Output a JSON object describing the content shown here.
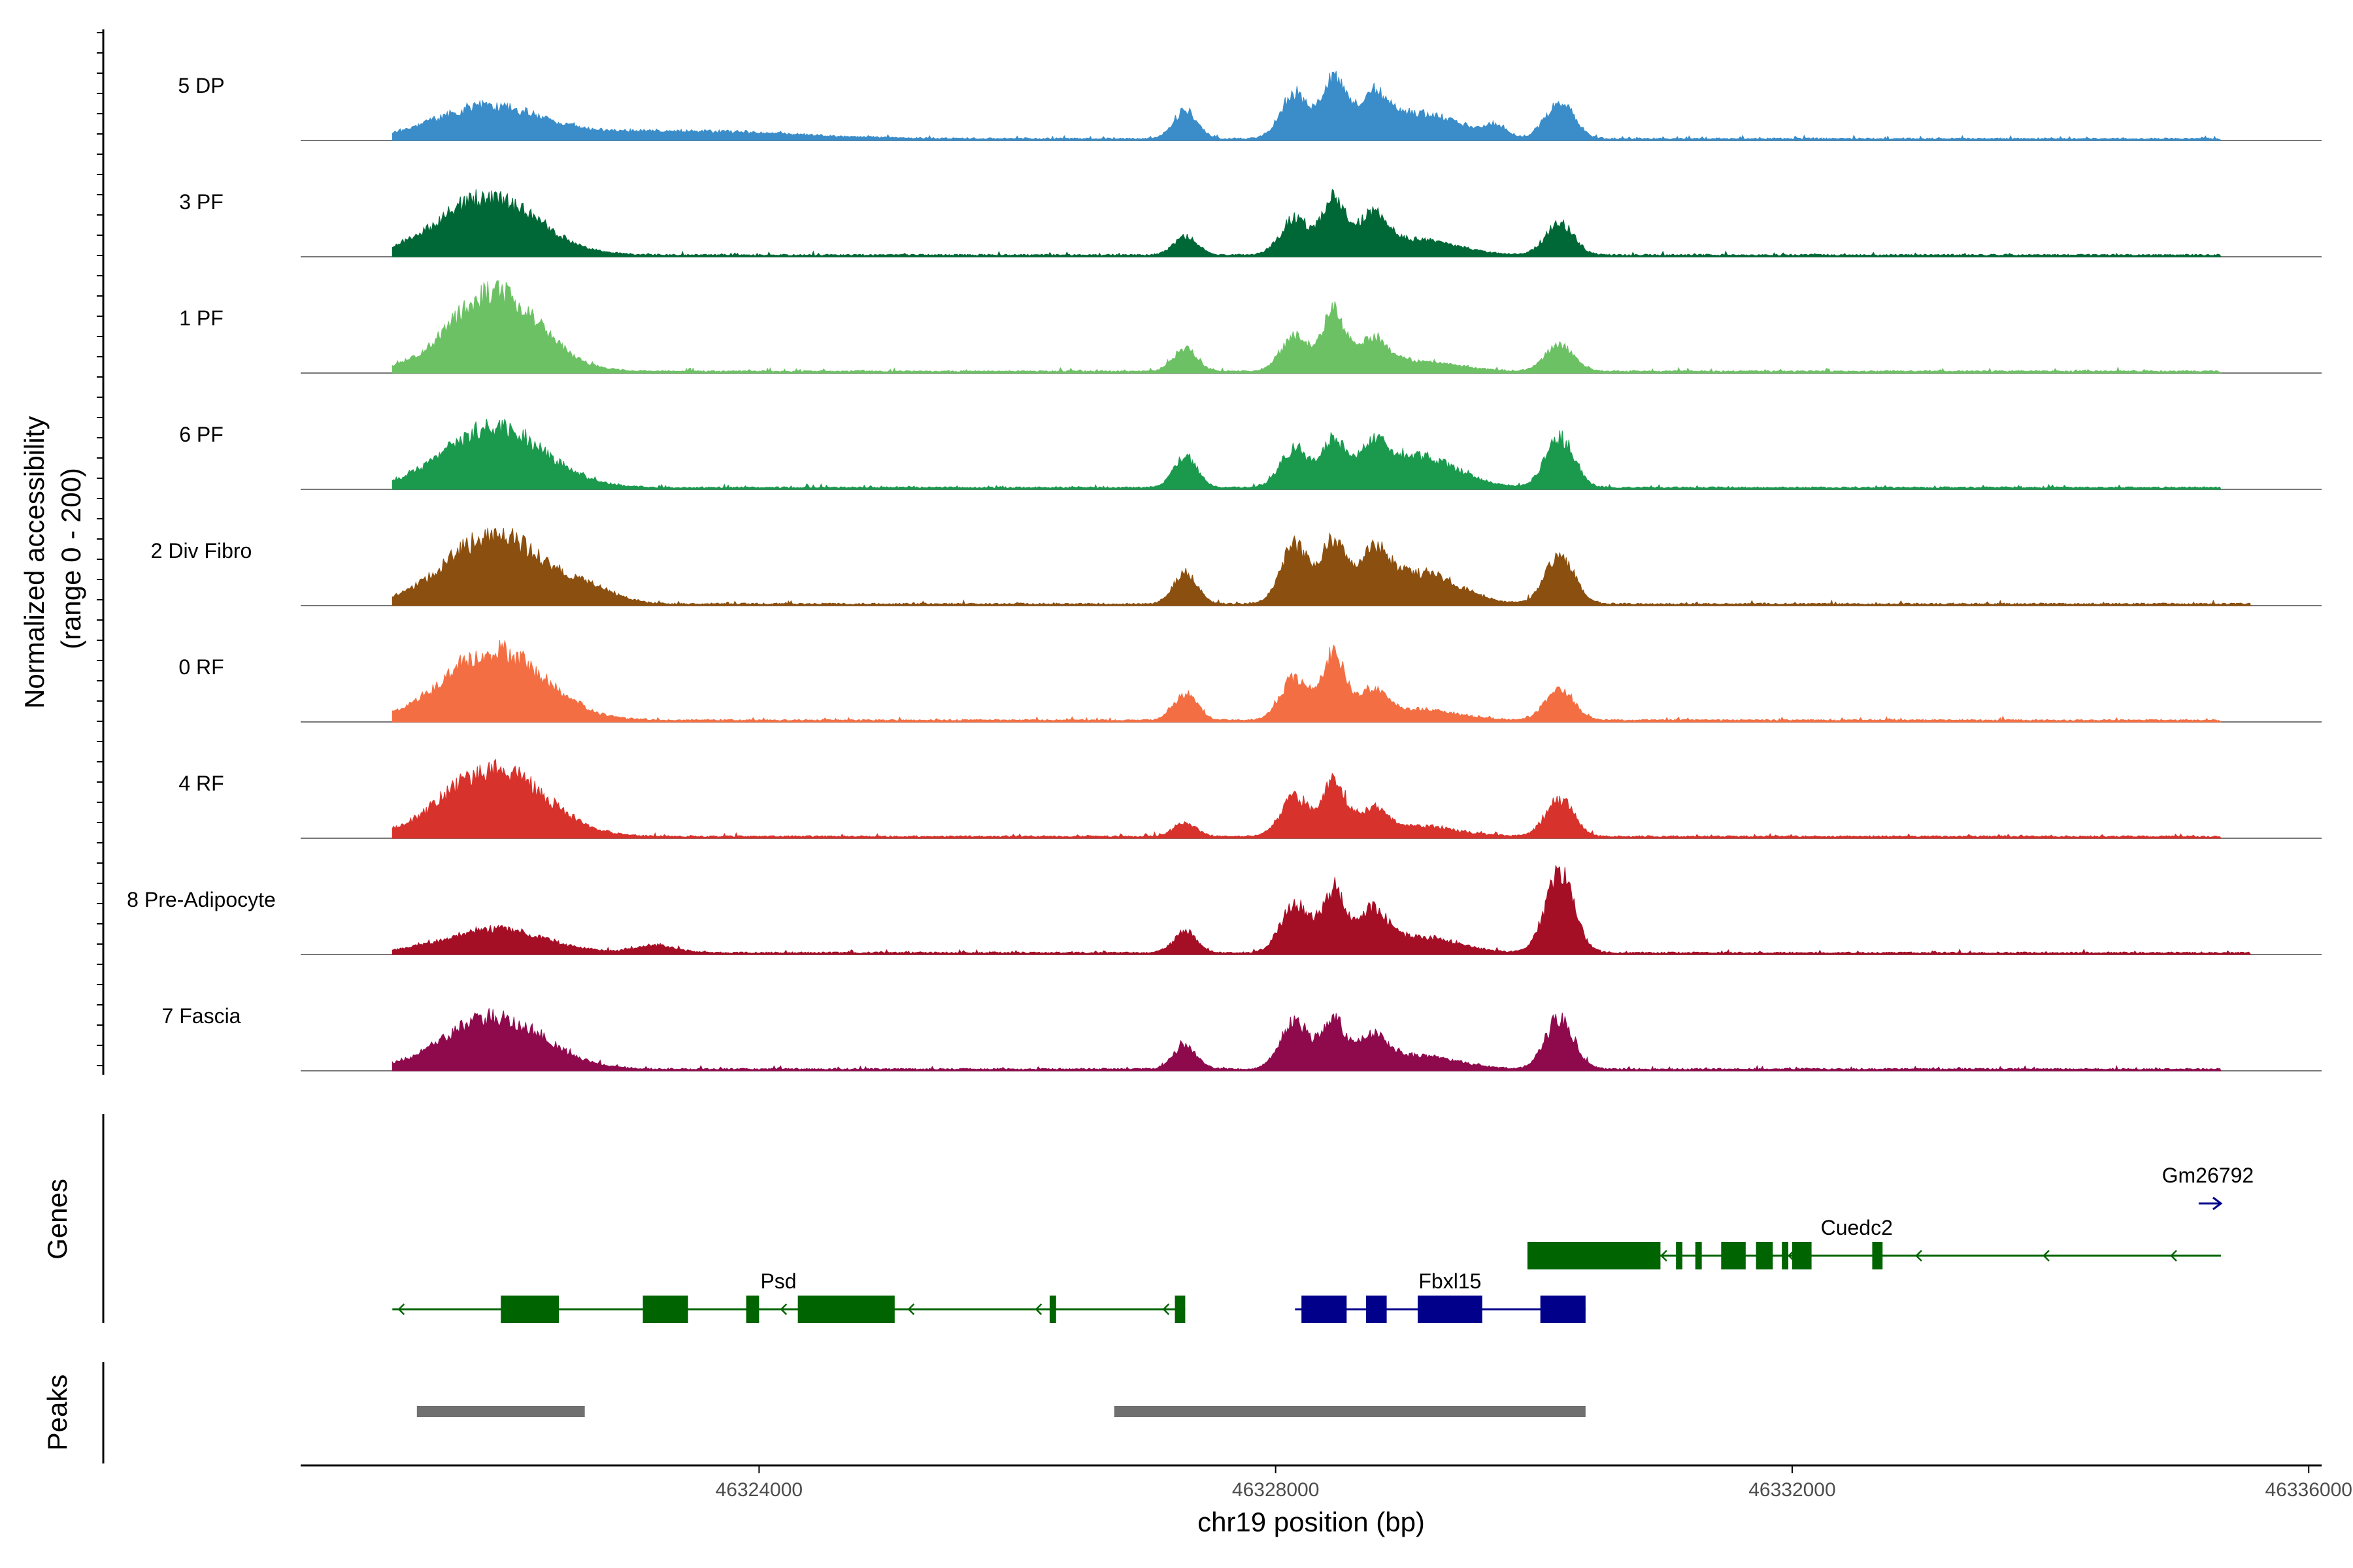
{
  "chart_data": {
    "type": "area",
    "region": {
      "chrom": "chr19",
      "start": 46320450,
      "end": 46336100
    },
    "coverage": {
      "ylabel_line1": "Normalized accessibility",
      "ylabel_line2": "(range 0 - 200)",
      "ylim": [
        0,
        200
      ],
      "tracks": [
        {
          "name": "5 DP",
          "color": "#3A8DC9",
          "extent": [
            46321160,
            46335320
          ],
          "peaks": [
            [
              46321900,
              400,
              60
            ],
            [
              46323400,
              800,
              15
            ],
            [
              46327300,
              90,
              55
            ],
            [
              46328150,
              110,
              85
            ],
            [
              46328450,
              90,
              115
            ],
            [
              46328750,
              110,
              65
            ],
            [
              46329100,
              300,
              50
            ],
            [
              46329700,
              90,
              20
            ],
            [
              46330200,
              110,
              70
            ]
          ]
        },
        {
          "name": "3 PF",
          "color": "#006837",
          "extent": [
            46321160,
            46335320
          ],
          "peaks": [
            [
              46321900,
              380,
              110
            ],
            [
              46327300,
              90,
              35
            ],
            [
              46328150,
              110,
              70
            ],
            [
              46328450,
              90,
              105
            ],
            [
              46328750,
              110,
              70
            ],
            [
              46329100,
              300,
              30
            ],
            [
              46330200,
              110,
              60
            ]
          ]
        },
        {
          "name": "1 PF",
          "color": "#6CC164",
          "extent": [
            46321160,
            46335320
          ],
          "peaks": [
            [
              46321950,
              340,
              150
            ],
            [
              46327300,
              90,
              45
            ],
            [
              46328150,
              110,
              65
            ],
            [
              46328450,
              90,
              110
            ],
            [
              46328750,
              110,
              55
            ],
            [
              46329100,
              300,
              20
            ],
            [
              46330200,
              110,
              50
            ]
          ]
        },
        {
          "name": "6 PF",
          "color": "#1B9A4E",
          "extent": [
            46321160,
            46335320
          ],
          "peaks": [
            [
              46321950,
              380,
              115
            ],
            [
              46327300,
              90,
              60
            ],
            [
              46328150,
              110,
              75
            ],
            [
              46328450,
              90,
              85
            ],
            [
              46328750,
              110,
              65
            ],
            [
              46329100,
              300,
              60
            ],
            [
              46330200,
              110,
              95
            ]
          ]
        },
        {
          "name": "2 Div Fibro",
          "color": "#8B4F0F",
          "extent": [
            46321160,
            46335550
          ],
          "peaks": [
            [
              46321950,
              380,
              130
            ],
            [
              46322700,
              200,
              20
            ],
            [
              46327300,
              90,
              60
            ],
            [
              46328150,
              110,
              110
            ],
            [
              46328450,
              90,
              115
            ],
            [
              46328750,
              110,
              80
            ],
            [
              46329100,
              300,
              60
            ],
            [
              46330200,
              110,
              95
            ]
          ]
        },
        {
          "name": "0 RF",
          "color": "#F36F43",
          "extent": [
            46321160,
            46335320
          ],
          "peaks": [
            [
              46321950,
              380,
              135
            ],
            [
              46327300,
              90,
              50
            ],
            [
              46328150,
              110,
              80
            ],
            [
              46328450,
              90,
              120
            ],
            [
              46328750,
              110,
              50
            ],
            [
              46329100,
              300,
              20
            ],
            [
              46330200,
              110,
              60
            ]
          ]
        },
        {
          "name": "4 RF",
          "color": "#D7322B",
          "extent": [
            46321160,
            46335320
          ],
          "peaks": [
            [
              46321950,
              380,
              130
            ],
            [
              46327300,
              90,
              25
            ],
            [
              46328150,
              110,
              75
            ],
            [
              46328450,
              90,
              100
            ],
            [
              46328750,
              110,
              45
            ],
            [
              46329100,
              300,
              20
            ],
            [
              46330200,
              110,
              70
            ]
          ]
        },
        {
          "name": "8 Pre-Adipocyte",
          "color": "#A50F26",
          "extent": [
            46321160,
            46335550
          ],
          "peaks": [
            [
              46321950,
              380,
              45
            ],
            [
              46323200,
              150,
              15
            ],
            [
              46327300,
              90,
              40
            ],
            [
              46328150,
              110,
              95
            ],
            [
              46328450,
              90,
              115
            ],
            [
              46328750,
              110,
              70
            ],
            [
              46329100,
              300,
              30
            ],
            [
              46330200,
              110,
              150
            ]
          ]
        },
        {
          "name": "7 Fascia",
          "color": "#8E0A4D",
          "extent": [
            46321160,
            46335320
          ],
          "peaks": [
            [
              46321950,
              380,
              100
            ],
            [
              46327300,
              90,
              45
            ],
            [
              46328150,
              110,
              90
            ],
            [
              46328450,
              90,
              90
            ],
            [
              46328750,
              110,
              55
            ],
            [
              46329100,
              300,
              25
            ],
            [
              46330200,
              110,
              95
            ]
          ]
        }
      ]
    },
    "genes": {
      "ylabel": "Genes",
      "items": [
        {
          "name": "Psd",
          "strand": "-",
          "color": "#006400",
          "start": 46321160,
          "end": 46327300,
          "row": 1,
          "exons": [
            [
              46322000,
              46322450
            ],
            [
              46323100,
              46323450
            ],
            [
              46323900,
              46324000
            ],
            [
              46324300,
              46325050
            ],
            [
              46326250,
              46326300
            ],
            [
              46327220,
              46327300
            ]
          ]
        },
        {
          "name": "Fbxl15",
          "strand": "-",
          "color": "#00008B",
          "start": 46328150,
          "end": 46330400,
          "row": 1,
          "exons": [
            [
              46328200,
              46328550
            ],
            [
              46328700,
              46328860
            ],
            [
              46329100,
              46329600
            ],
            [
              46330050,
              46330400
            ]
          ]
        },
        {
          "name": "Cuedc2",
          "strand": "-",
          "color": "#006400",
          "start": 46329950,
          "end": 46335320,
          "row": 0,
          "exons": [
            [
              46329950,
              46330980
            ],
            [
              46331100,
              46331150
            ],
            [
              46331250,
              46331300
            ],
            [
              46331450,
              46331640
            ],
            [
              46331720,
              46331850
            ],
            [
              46331920,
              46331970
            ],
            [
              46332000,
              46332150
            ],
            [
              46332620,
              46332700
            ]
          ]
        },
        {
          "name": "Gm26792",
          "strand": "+",
          "color": "#00008B",
          "start": 46335150,
          "end": 46335320,
          "row": -1,
          "exons": []
        }
      ]
    },
    "peaks_track": {
      "ylabel": "Peaks",
      "color": "#707070",
      "regions": [
        [
          46321350,
          46322650
        ],
        [
          46326750,
          46330400
        ]
      ]
    },
    "x_axis": {
      "label": "chr19 position (bp)",
      "ticks": [
        46324000,
        46328000,
        46332000,
        46336000
      ],
      "tick_labels": [
        "46324000",
        "46328000",
        "46332000",
        "46336000"
      ]
    }
  }
}
